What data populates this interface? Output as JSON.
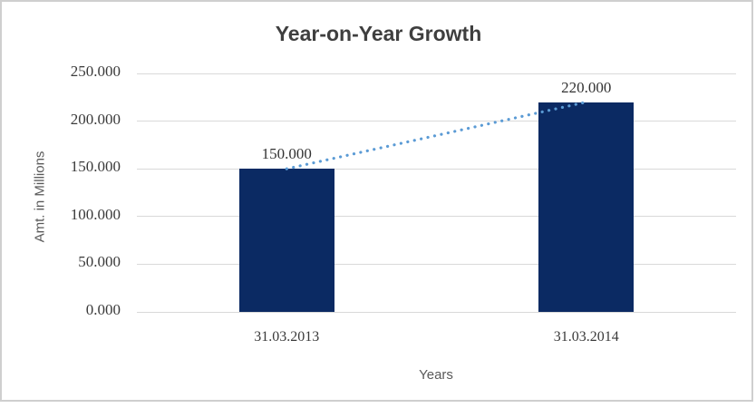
{
  "chart_data": {
    "type": "bar",
    "title": "Year-on-Year Growth",
    "xlabel": "Years",
    "ylabel": "Amt. in Millions",
    "categories": [
      "31.03.2013",
      "31.03.2014"
    ],
    "values": [
      150,
      220
    ],
    "data_labels": [
      "150.000",
      "220.000"
    ],
    "ylim": [
      0,
      250
    ],
    "ytick_step": 50,
    "yticks": [
      {
        "value": 0,
        "label": "0.000"
      },
      {
        "value": 50,
        "label": "50.000"
      },
      {
        "value": 100,
        "label": "100.000"
      },
      {
        "value": 150,
        "label": "150.000"
      },
      {
        "value": 200,
        "label": "200.000"
      },
      {
        "value": 250,
        "label": "250.000"
      }
    ],
    "grid": true,
    "legend": false,
    "trendline": {
      "style": "dotted",
      "connects": "bar-tops"
    },
    "colors": {
      "bar": "#0b2a63",
      "gridline": "#d9d9d9",
      "trendline": "#5b9bd5",
      "title_text": "#3f3f3f",
      "axis_title_text": "#595959",
      "tick_text": "#3a3a3a",
      "frame_border": "#cfcfcf"
    }
  }
}
